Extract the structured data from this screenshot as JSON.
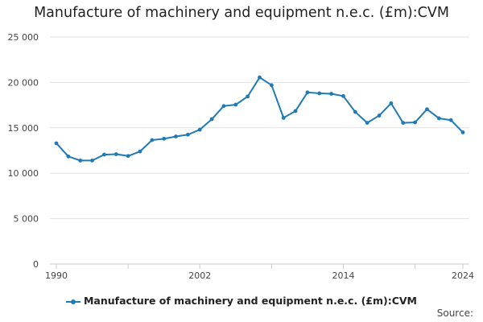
{
  "chart_data": {
    "type": "line",
    "title": "Manufacture of machinery and equipment n.e.c. (£m):CVM",
    "xlabel": "",
    "ylabel": "",
    "x": [
      1990,
      1991,
      1992,
      1993,
      1994,
      1995,
      1996,
      1997,
      1998,
      1999,
      2000,
      2001,
      2002,
      2003,
      2004,
      2005,
      2006,
      2007,
      2008,
      2009,
      2010,
      2011,
      2012,
      2013,
      2014,
      2015,
      2016,
      2017,
      2018,
      2019,
      2020,
      2021,
      2022,
      2023,
      2024
    ],
    "series": [
      {
        "name": "Manufacture of machinery and equipment n.e.c. (£m):CVM",
        "color": "#1f7ab5",
        "values": [
          13300,
          11850,
          11400,
          11400,
          12050,
          12100,
          11900,
          12400,
          13650,
          13800,
          14050,
          14250,
          14800,
          15950,
          17400,
          17550,
          18450,
          20550,
          19700,
          16100,
          16850,
          18900,
          18800,
          18750,
          18500,
          16750,
          15550,
          16350,
          17700,
          15550,
          15600,
          17050,
          16050,
          15850,
          14500
        ]
      }
    ],
    "xlim": [
      1990,
      2024
    ],
    "ylim": [
      0,
      25000
    ],
    "y_ticks": [
      0,
      5000,
      10000,
      15000,
      20000,
      25000
    ],
    "y_tick_labels": [
      "0",
      "5 000",
      "10 000",
      "15 000",
      "20 000",
      "25 000"
    ],
    "x_ticks": [
      1990,
      1996,
      2002,
      2008,
      2014,
      2020,
      2024
    ],
    "x_tick_labels": [
      "1990",
      "",
      "2002",
      "",
      "2014",
      "",
      "2024"
    ],
    "grid": true,
    "legend_position": "bottom",
    "source_label": "Source:"
  }
}
